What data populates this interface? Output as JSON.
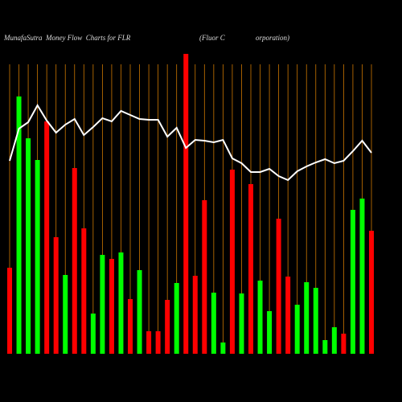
{
  "chart_data": {
    "type": "bar_line",
    "title": "MunafaSutra  Money Flow  Charts for FLR",
    "subtitle": "(Fluor C                 orporation)",
    "values": [
      107,
      320,
      268,
      241,
      289,
      145,
      98,
      231,
      156,
      50,
      123,
      118,
      126,
      68,
      104,
      28,
      28,
      67,
      88,
      373,
      97,
      191,
      76,
      14,
      229,
      75,
      211,
      91,
      53,
      168,
      96,
      61,
      89,
      82,
      17,
      33,
      25,
      179,
      193,
      153
    ],
    "bar_colors": [
      "#ff0000",
      "#00ff00",
      "#00ff00",
      "#00ff00",
      "#ff0000",
      "#ff0000",
      "#00ff00",
      "#ff0000",
      "#ff0000",
      "#00ff00",
      "#00ff00",
      "#ff0000",
      "#00ff00",
      "#ff0000",
      "#00ff00",
      "#ff0000",
      "#ff0000",
      "#ff0000",
      "#00ff00",
      "#ff0000",
      "#ff0000",
      "#ff0000",
      "#00ff00",
      "#00ff00",
      "#ff0000",
      "#00ff00",
      "#ff0000",
      "#00ff00",
      "#00ff00",
      "#ff0000",
      "#ff0000",
      "#00ff00",
      "#00ff00",
      "#00ff00",
      "#00ff00",
      "#00ff00",
      "#ff0000",
      "#00ff00",
      "#00ff00",
      "#ff0000"
    ],
    "line_values": [
      240,
      280,
      288,
      309,
      290,
      275,
      285,
      292,
      272,
      282,
      293,
      289,
      302,
      297,
      292,
      291,
      291,
      270,
      281,
      256,
      266,
      265,
      263,
      266,
      243,
      237,
      226,
      226,
      230,
      221,
      216,
      227,
      233,
      238,
      242,
      237,
      240,
      252,
      265,
      250
    ],
    "line_color": "#ffffff",
    "grid_color": "#cc7700",
    "ylim": [
      0,
      380
    ]
  }
}
